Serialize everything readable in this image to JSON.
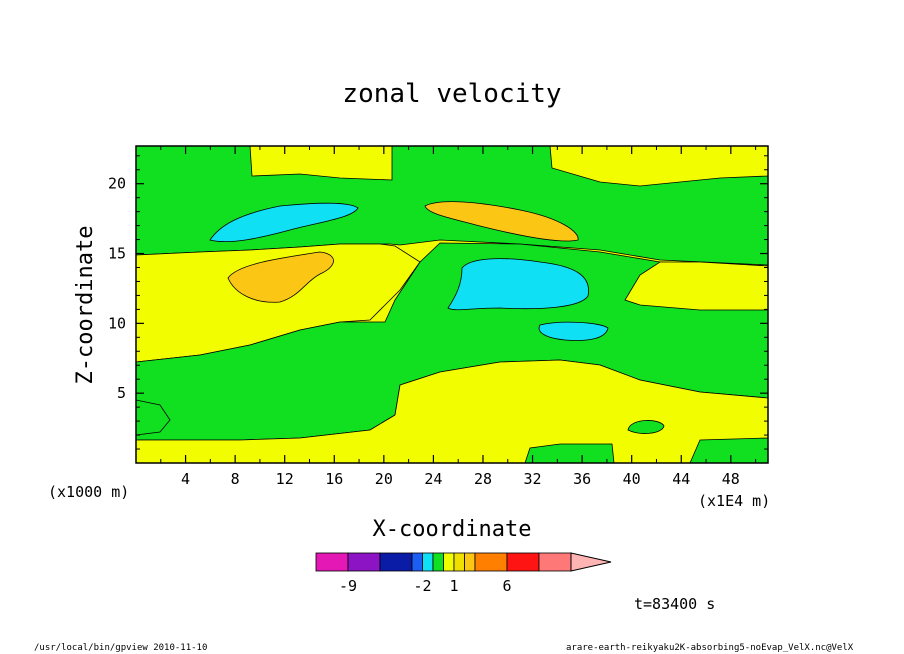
{
  "chart_data": {
    "type": "heatmap",
    "title": "zonal velocity",
    "xlabel": "X-coordinate",
    "ylabel": "Z-coordinate",
    "x_scale_note": "(x1E4 m)",
    "y_scale_note": "(x1000 m)",
    "xlim": [
      0,
      51
    ],
    "ylim": [
      0,
      22.7
    ],
    "xticks": [
      "4",
      "8",
      "12",
      "16",
      "20",
      "24",
      "28",
      "32",
      "36",
      "40",
      "44",
      "48"
    ],
    "xtick_values": [
      4,
      8,
      12,
      16,
      20,
      24,
      28,
      32,
      36,
      40,
      44,
      48
    ],
    "yticks": [
      "5",
      "10",
      "15",
      "20"
    ],
    "ytick_values": [
      5,
      10,
      15,
      20
    ],
    "colorbar": {
      "levels": [
        {
          "min": null,
          "max": -9,
          "color": "#e418b4"
        },
        {
          "min": -9,
          "max": -6,
          "color": "#8c14c4"
        },
        {
          "min": -6,
          "max": -3,
          "color": "#0a1ca6"
        },
        {
          "min": -3,
          "max": -2,
          "color": "#1c5ef4"
        },
        {
          "min": -2,
          "max": -1,
          "color": "#0fe0f4"
        },
        {
          "min": -1,
          "max": 0,
          "color": "#10e020"
        },
        {
          "min": 0,
          "max": 1,
          "color": "#f2fd00"
        },
        {
          "min": 1,
          "max": 2,
          "color": "#f0e000"
        },
        {
          "min": 2,
          "max": 3,
          "color": "#fcc614"
        },
        {
          "min": 3,
          "max": 6,
          "color": "#ff8000"
        },
        {
          "min": 6,
          "max": 9,
          "color": "#ff1414"
        },
        {
          "min": 9,
          "max": 12,
          "color": "#fe7878"
        },
        {
          "min": 12,
          "max": null,
          "color": "#ffb4b4"
        }
      ],
      "tick_labels": [
        "-9",
        "-2",
        "1",
        "6"
      ]
    },
    "regions": [
      {
        "value_range": "0 to 1",
        "color": "#f2fd00",
        "description": "lower layer z 0-2 km"
      },
      {
        "value_range": "-1 to 0",
        "color": "#10e020",
        "description": "band z 2-7 km rising eastward"
      },
      {
        "value_range": "0 to 1",
        "color": "#f2fd00",
        "description": "middle layer z 7-15 km"
      },
      {
        "value_range": "2 to 3",
        "color": "#fcc614",
        "description": "cell near x=10, z=13"
      },
      {
        "value_range": "-1 to 0",
        "color": "#10e020",
        "description": "upper band z 15-20 km"
      },
      {
        "value_range": "-2 to -1",
        "color": "#0fe0f4",
        "description": "cell near x=12, z=17"
      },
      {
        "value_range": "-2 to -1",
        "color": "#0fe0f4",
        "description": "cell near x=31, z=13"
      },
      {
        "value_range": "-2 to -1",
        "color": "#0fe0f4",
        "description": "cell near x=35, z=9.5"
      },
      {
        "value_range": "2 to 3",
        "color": "#fcc614",
        "description": "cell near x=29, z=17.5"
      },
      {
        "value_range": "0 to 1",
        "color": "#f2fd00",
        "description": "top layer z 20-22.7 km"
      }
    ]
  },
  "annotations": {
    "time": "t=83400 s",
    "footer_left": "/usr/local/bin/gpview  2010-11-10",
    "footer_right": "arare-earth-reikyaku2K-absorbing5-noEvap_VelX.nc@VelX"
  }
}
